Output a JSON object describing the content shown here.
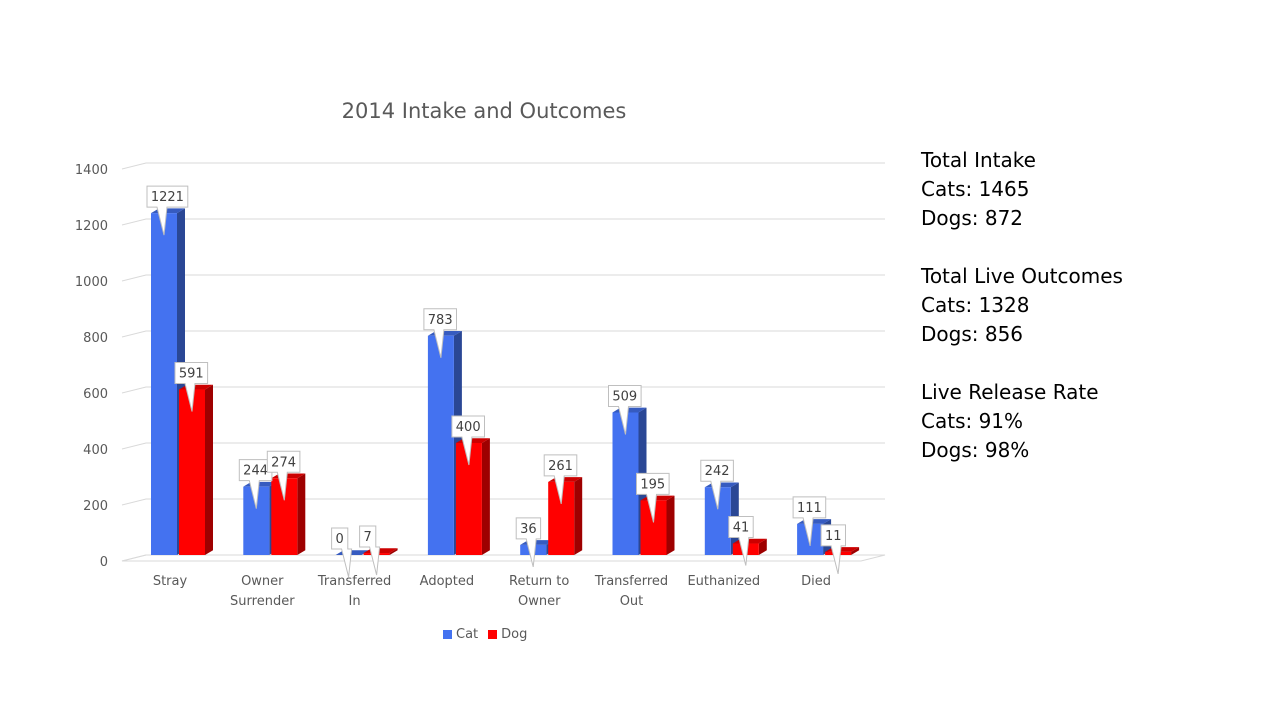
{
  "chart_data": {
    "type": "bar",
    "title": "2014 Intake and Outcomes",
    "categories": [
      [
        "Stray"
      ],
      [
        "Owner",
        "Surrender"
      ],
      [
        "Transferred",
        "In"
      ],
      [
        "Adopted"
      ],
      [
        "Return to",
        "Owner"
      ],
      [
        "Transferred",
        "Out"
      ],
      [
        "Euthanized"
      ],
      [
        "Died"
      ]
    ],
    "series": [
      {
        "name": "Cat",
        "color": "#4472F0",
        "values": [
          1221,
          244,
          0,
          783,
          36,
          509,
          242,
          111
        ]
      },
      {
        "name": "Dog",
        "color": "#FF0000",
        "values": [
          591,
          274,
          7,
          400,
          261,
          195,
          41,
          11
        ]
      }
    ],
    "ylim": [
      0,
      1400
    ],
    "yticks": [
      0,
      200,
      400,
      600,
      800,
      1000,
      1200,
      1400
    ],
    "grid": true,
    "legend_position": "bottom",
    "data_labels": true
  },
  "stats": [
    {
      "lines": [
        "Total Intake",
        "Cats: 1465",
        "Dogs: 872"
      ]
    },
    {
      "lines": [
        "Total Live Outcomes",
        "Cats: 1328",
        "Dogs: 856"
      ]
    },
    {
      "lines": [
        "Live Release Rate",
        "Cats: 91%",
        "Dogs: 98%"
      ]
    }
  ]
}
